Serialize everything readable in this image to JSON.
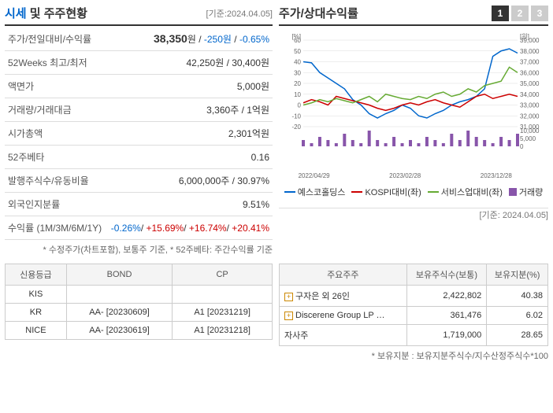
{
  "header": {
    "title_part1": "시세",
    "title_part2": "및 주주현황",
    "basis": "[기준:2024.04.05]"
  },
  "info_rows": [
    {
      "label": "주가/전일대비/수익률",
      "value_main": "38,350",
      "value_unit": "원",
      "value_change": "-250원",
      "value_pct": "-0.65%"
    },
    {
      "label": "52Weeks 최고/최저",
      "value": "42,250원 / 30,400원"
    },
    {
      "label": "액면가",
      "value": "5,000원"
    },
    {
      "label": "거래량/거래대금",
      "value": "3,360주 / 1억원"
    },
    {
      "label": "시가총액",
      "value": "2,301억원"
    },
    {
      "label": "52주베타",
      "value": "0.16"
    },
    {
      "label": "발행주식수/유동비율",
      "value": "6,000,000주 / 30.97%"
    },
    {
      "label": "외국인지분률",
      "value": "9.51%"
    },
    {
      "label": "수익률 (1M/3M/6M/1Y)",
      "r1": "-0.26%",
      "r2": "+15.69%",
      "r3": "+16.74%",
      "r4": "+20.41%"
    }
  ],
  "footnote_left": "* 수정주가(차트포함), 보통주 기준, * 52주베타: 주간수익률 기준",
  "chart": {
    "title": "주가/상대수익률",
    "tabs": [
      "1",
      "2",
      "3"
    ],
    "y_left_label": "[%]",
    "y_right_label": "[원]",
    "y_left_ticks": [
      60,
      50,
      40,
      30,
      20,
      10,
      0,
      -10,
      -20
    ],
    "y_right_ticks": [
      39000,
      38000,
      37000,
      36000,
      35000,
      34000,
      33000,
      32000,
      31000,
      10000,
      5000,
      0
    ],
    "x_labels": [
      "2022/04/29",
      "2023/02/28",
      "2023/12/28"
    ],
    "series": {
      "blue": {
        "name": "예스코홀딩스",
        "color": "#0066cc",
        "data": [
          40,
          39,
          30,
          25,
          20,
          15,
          5,
          0,
          -8,
          -12,
          -8,
          -5,
          0,
          -3,
          -10,
          -12,
          -8,
          -5,
          0,
          3,
          5,
          8,
          15,
          45,
          50,
          52,
          48
        ]
      },
      "red": {
        "name": "KOSPI대비(좌)",
        "color": "#cc0000",
        "data": [
          2,
          5,
          3,
          0,
          8,
          6,
          4,
          2,
          0,
          -3,
          -5,
          -3,
          0,
          2,
          0,
          3,
          5,
          2,
          0,
          -2,
          3,
          8,
          10,
          6,
          8,
          10,
          8
        ]
      },
      "green": {
        "name": "서비스업대비(좌)",
        "color": "#66aa33",
        "data": [
          0,
          2,
          5,
          3,
          6,
          4,
          2,
          5,
          8,
          3,
          10,
          8,
          6,
          5,
          8,
          6,
          10,
          12,
          8,
          10,
          15,
          12,
          18,
          20,
          22,
          35,
          30
        ]
      },
      "purple": {
        "name": "거래량",
        "color": "#8855aa",
        "data": [
          2,
          1,
          3,
          2,
          1,
          4,
          2,
          1,
          5,
          2,
          1,
          3,
          1,
          2,
          1,
          3,
          2,
          1,
          4,
          2,
          5,
          3,
          2,
          1,
          3,
          2,
          4
        ]
      }
    }
  },
  "basis_right": "[기준: 2024.04.05]",
  "credit": {
    "headers": [
      "신용등급",
      "BOND",
      "CP"
    ],
    "rows": [
      {
        "agency": "KIS",
        "bond": "",
        "cp": ""
      },
      {
        "agency": "KR",
        "bond": "AA- [20230609]",
        "cp": "A1 [20231219]"
      },
      {
        "agency": "NICE",
        "bond": "AA- [20230619]",
        "cp": "A1 [20231218]"
      }
    ]
  },
  "shareholders": {
    "headers": [
      "주요주주",
      "보유주식수(보통)",
      "보유지분(%)"
    ],
    "rows": [
      {
        "name": "구자은 외 26인",
        "shares": "2,422,802",
        "pct": "40.38",
        "expand": true
      },
      {
        "name": "Discerene Group LP …",
        "shares": "361,476",
        "pct": "6.02",
        "expand": true
      },
      {
        "name": "자사주",
        "shares": "1,719,000",
        "pct": "28.65",
        "expand": false
      }
    ]
  },
  "footnote_right": "* 보유지분 : 보유지분주식수/지수산정주식수*100"
}
